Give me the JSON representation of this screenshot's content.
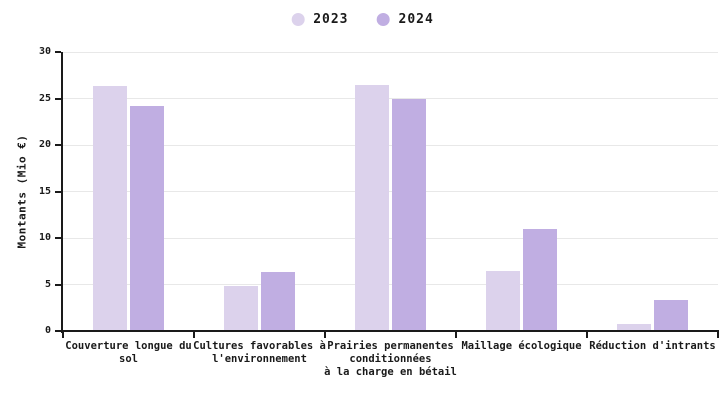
{
  "chart_data": {
    "type": "bar",
    "title": "",
    "ylabel": "Montants (Mio €)",
    "xlabel": "",
    "ylim": [
      0,
      30
    ],
    "yticks": [
      0,
      5,
      10,
      15,
      20,
      25,
      30
    ],
    "grid": "horizontal",
    "legend_position": "top-center",
    "categories": [
      {
        "label": "Couverture longue du sol",
        "lines": [
          "Couverture longue du",
          "sol"
        ]
      },
      {
        "label": "Cultures favorables à l'environnement",
        "lines": [
          "Cultures favorables à",
          "l'environnement"
        ]
      },
      {
        "label": "Prairies permanentes conditionnées à la charge en bétail",
        "lines": [
          "Prairies permanentes",
          "conditionnées",
          "à la charge en bétail"
        ]
      },
      {
        "label": "Maillage écologique",
        "lines": [
          "Maillage écologique"
        ]
      },
      {
        "label": "Réduction d'intrants",
        "lines": [
          "Réduction d'intrants"
        ]
      }
    ],
    "series": [
      {
        "name": "2023",
        "color": "#dcd2ec",
        "values": [
          26.3,
          4.8,
          26.4,
          6.5,
          0.8
        ]
      },
      {
        "name": "2024",
        "color": "#c0aee2",
        "values": [
          24.2,
          6.3,
          24.9,
          11.0,
          3.3
        ]
      }
    ]
  },
  "colors": {
    "background": "#ffffff",
    "axis": "#1a1a1a",
    "grid": "#e8e8e8",
    "text": "#1a1a1a",
    "series_2023": "#dcd2ec",
    "series_2024": "#c0aee2"
  }
}
